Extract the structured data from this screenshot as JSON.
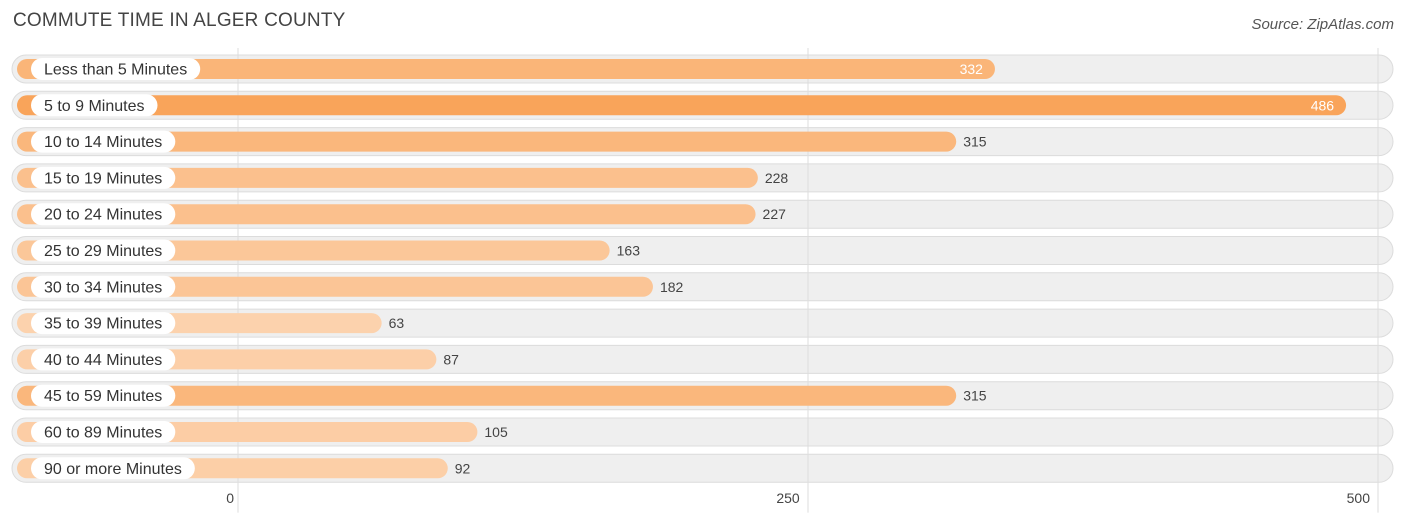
{
  "header": {
    "title": "COMMUTE TIME IN ALGER COUNTY",
    "source": "Source: ZipAtlas.com"
  },
  "chart_data": {
    "type": "bar",
    "orientation": "horizontal",
    "title": "COMMUTE TIME IN ALGER COUNTY",
    "categories": [
      "Less than 5 Minutes",
      "5 to 9 Minutes",
      "10 to 14 Minutes",
      "15 to 19 Minutes",
      "20 to 24 Minutes",
      "25 to 29 Minutes",
      "30 to 34 Minutes",
      "35 to 39 Minutes",
      "40 to 44 Minutes",
      "45 to 59 Minutes",
      "60 to 89 Minutes",
      "90 or more Minutes"
    ],
    "values": [
      332,
      486,
      315,
      228,
      227,
      163,
      182,
      63,
      87,
      315,
      105,
      92
    ],
    "xlim": [
      0,
      500
    ],
    "xticks": [
      0,
      250,
      500
    ],
    "grid": true,
    "colors": {
      "bar_max": "#f9a45a",
      "bar_min": "#fcd2ad",
      "label_inside": "#ffffff",
      "label_outside": "#444444"
    }
  }
}
